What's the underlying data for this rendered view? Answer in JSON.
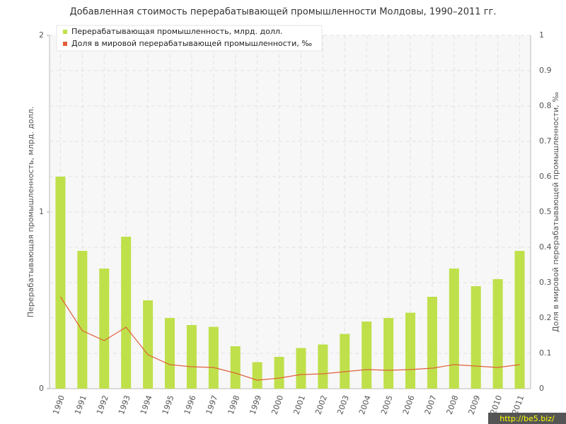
{
  "chart_data": {
    "type": "bar",
    "title": "Добавленная стоимость перерабатывающей промышленности Молдовы, 1990–2011 гг.",
    "y_label": "Перерабатывающая промышленность, млрд. долл.",
    "y2_label": "Доля в мировой перерабатывающей промышленности, ‰",
    "categories": [
      "1990",
      "1991",
      "1992",
      "1993",
      "1994",
      "1995",
      "1996",
      "1997",
      "1998",
      "1999",
      "2000",
      "2001",
      "2002",
      "2003",
      "2004",
      "2005",
      "2006",
      "2007",
      "2008",
      "2009",
      "2010",
      "2011"
    ],
    "series": [
      {
        "name": "Перерабатывающая промышленность, млрд. долл.",
        "type": "bar",
        "color": "#bfe04a",
        "values": [
          1.2,
          0.78,
          0.68,
          0.86,
          0.5,
          0.4,
          0.36,
          0.35,
          0.24,
          0.15,
          0.18,
          0.23,
          0.25,
          0.31,
          0.38,
          0.4,
          0.43,
          0.52,
          0.68,
          0.58,
          0.62,
          0.78
        ]
      },
      {
        "name": "Доля в мировой перерабатывающей промышленности, ‰",
        "type": "line",
        "axis": "y2",
        "color": "#e0603a",
        "values": [
          0.26,
          0.164,
          0.136,
          0.174,
          0.096,
          0.068,
          0.062,
          0.06,
          0.044,
          0.024,
          0.03,
          0.04,
          0.042,
          0.048,
          0.054,
          0.052,
          0.054,
          0.058,
          0.068,
          0.064,
          0.06,
          0.068
        ]
      }
    ],
    "ylim": [
      0,
      2
    ],
    "yticks": [
      0,
      1,
      2
    ],
    "y2lim": [
      0,
      1
    ],
    "y2ticks": [
      0,
      0.1,
      0.2,
      0.3,
      0.4,
      0.5,
      0.6,
      0.7,
      0.8,
      0.9,
      1
    ],
    "grid": true,
    "watermark": "http://be5.biz/"
  }
}
